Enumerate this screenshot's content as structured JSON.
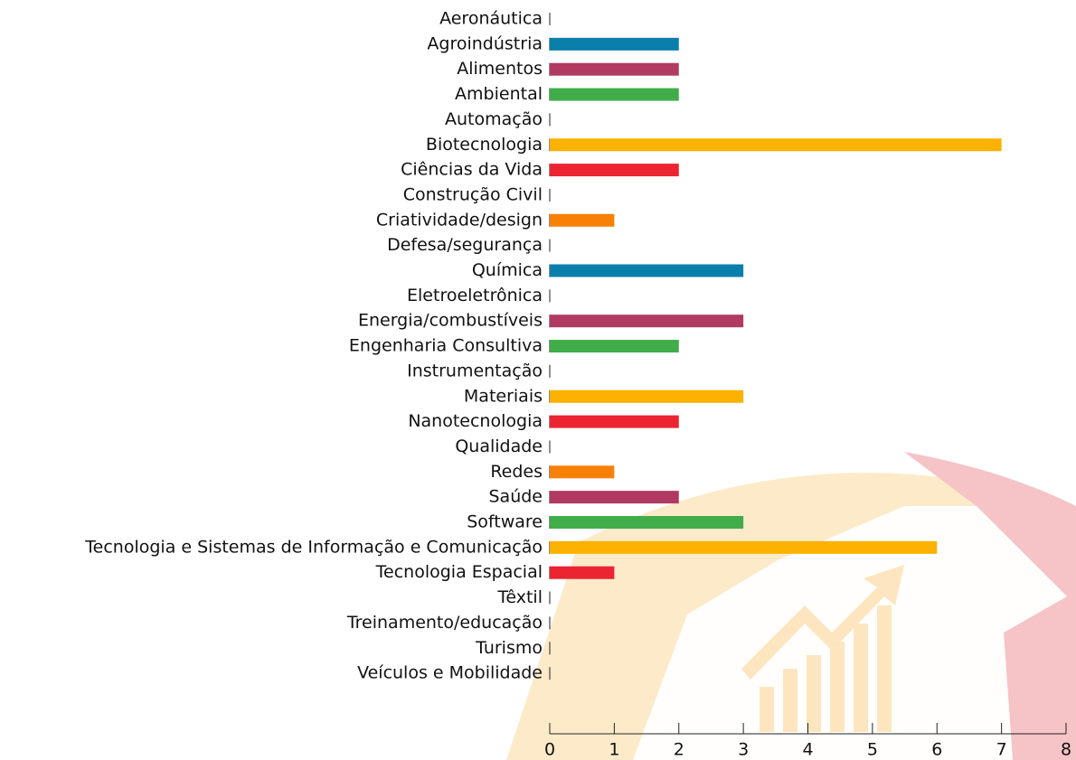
{
  "chart_data": {
    "type": "barh",
    "categories": [
      "Aeronáutica",
      "Agroindústria",
      "Alimentos",
      "Ambiental",
      "Automação",
      "Biotecnologia",
      "Ciências da Vida",
      "Construção Civil",
      "Criatividade/design",
      "Defesa/segurança",
      "Química",
      "Eletroeletrônica",
      "Energia/combustíveis",
      "Engenharia Consultiva",
      "Instrumentação",
      "Materiais",
      "Nanotecnologia",
      "Qualidade",
      "Redes",
      "Saúde",
      "Software",
      "Tecnologia e Sistemas de Informação e Comunicação",
      "Tecnologia Espacial",
      "Têxtil",
      "Treinamento/educação",
      "Turismo",
      "Veículos e Mobilidade"
    ],
    "values": [
      0,
      2,
      2,
      2,
      0,
      7,
      2,
      0,
      1,
      0,
      3,
      0,
      3,
      2,
      0,
      3,
      2,
      0,
      1,
      2,
      3,
      6,
      1,
      0,
      0,
      0,
      0
    ],
    "colors": [
      "#0a7fab",
      "#0a7fab",
      "#b03a62",
      "#41ac4a",
      "#fdb100",
      "#fdb100",
      "#ec2330",
      "#ec2330",
      "#f98006",
      "#f98006",
      "#0a7fab",
      "#b03a62",
      "#b03a62",
      "#41ac4a",
      "#fdb100",
      "#fdb100",
      "#ec2330",
      "#f98006",
      "#f98006",
      "#b03a62",
      "#41ac4a",
      "#fdb100",
      "#ec2330",
      "#f98006",
      "#0a7fab",
      "#b03a62",
      "#41ac4a"
    ],
    "xlim": [
      0,
      8
    ],
    "xticks": [
      0,
      1,
      2,
      3,
      4,
      5,
      6,
      7,
      8
    ]
  }
}
